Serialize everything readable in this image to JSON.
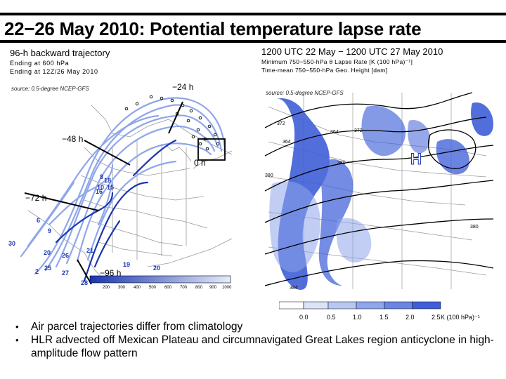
{
  "title": "22−26 May 2010: Potential temperature lapse rate",
  "left_panel": {
    "heading": "96-h backward trajectory",
    "line2": "Ending at 600 hPa",
    "line3": "Ending at 12Z/26 May 2010",
    "source": "source: 0.5-degree NCEP-GFS",
    "time_labels": [
      "−24 h",
      "−48 h",
      "0 h",
      "−72 h",
      "−96 h"
    ],
    "level_numbers": [
      "6",
      "8",
      "9",
      "10",
      "16",
      "18",
      "20",
      "26",
      "25",
      "27",
      "2",
      "19",
      "20",
      "28",
      "30",
      "21",
      "15"
    ],
    "pressure_scale": [
      "200",
      "300",
      "400",
      "500",
      "600",
      "700",
      "800",
      "900",
      "1000"
    ]
  },
  "right_panel": {
    "heading": "1200 UTC 22 May − 1200 UTC 27 May 2010",
    "line2": "Minimum 750−550-hPa θ Lapse Rate [K (100 hPa)⁻¹]",
    "line3": "Time-mean 750−550-hPa Geo. Height [dam]",
    "source": "source: 0.5-degree NCEP-GFS",
    "high_marker": "H",
    "contour_labels": [
      "364",
      "372",
      "364",
      "380",
      "380",
      "380",
      "372",
      "384"
    ],
    "colorbar_ticks": [
      "0.0",
      "0.5",
      "1.0",
      "1.5",
      "2.0",
      "2.5"
    ],
    "colorbar_unit": "K (100 hPa)⁻¹",
    "colorbar_colors": [
      "#ffffff",
      "#dbe3f8",
      "#b8c7f2",
      "#8fa6ea",
      "#6a86e2",
      "#3f5fd8"
    ]
  },
  "bullets": [
    "Air parcel trajectories differ from climatology",
    "HLR advected off Mexican Plateau and circumnavigated Great Lakes region anticyclone in high-amplitude flow pattern"
  ],
  "bullet_symbol": "•",
  "colors": {
    "trajectory_dark": "#1a36b0",
    "trajectory_light": "#8fa6ea",
    "shading": "#3f5fd8",
    "map_lines": "#9a9a9a"
  }
}
